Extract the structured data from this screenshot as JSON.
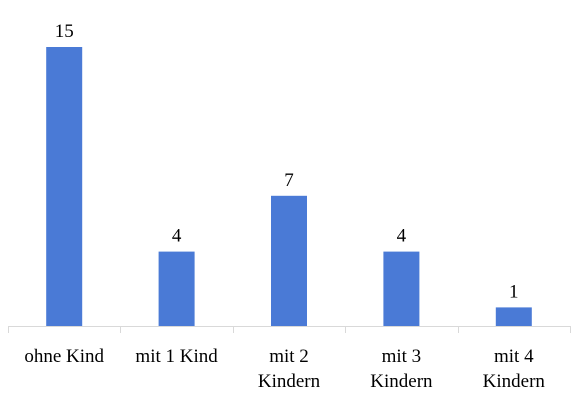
{
  "chart_data": {
    "type": "bar",
    "title": "",
    "xlabel": "",
    "ylabel": "",
    "categories": [
      [
        "ohne Kind"
      ],
      [
        "mit 1 Kind"
      ],
      [
        "mit 2",
        "Kindern"
      ],
      [
        "mit 3",
        "Kindern"
      ],
      [
        "mit 4",
        "Kindern"
      ]
    ],
    "values": [
      15,
      4,
      7,
      4,
      1
    ],
    "data_labels": [
      "15",
      "4",
      "7",
      "4",
      "1"
    ],
    "ylim": [
      0,
      15
    ],
    "grid": false,
    "legend": "none",
    "bar_color": "#4a7ad6"
  }
}
